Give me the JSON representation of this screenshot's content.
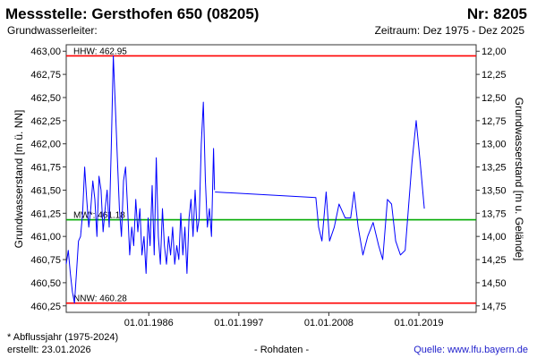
{
  "header": {
    "title": "Messstelle: Gersthofen 650 (08205)",
    "number": "Nr: 8205",
    "aquifer_label": "Grundwasserleiter:",
    "period": "Zeitraum: Dez 1975 - Dez 2025"
  },
  "footer": {
    "note": "* Abflussjahr (1975-2024)",
    "created": "erstellt:  23.01.2026",
    "mode": "- Rohdaten -",
    "source_label": "Quelle: ",
    "source_link": "www.lfu.bayern.de"
  },
  "chart_data": {
    "type": "line",
    "ylabel_left": "Grundwasserstand [m ü. NN]",
    "ylabel_right": "Grundwasserstand [m u. Gelände]",
    "yticks_left": [
      "463,00",
      "462,75",
      "462,50",
      "462,25",
      "462,00",
      "461,75",
      "461,50",
      "461,25",
      "461,00",
      "460,75",
      "460,50",
      "460,25"
    ],
    "yticks_right": [
      "12,00",
      "12,25",
      "12,50",
      "12,75",
      "13,00",
      "13,25",
      "13,50",
      "13,75",
      "14,00",
      "14,25",
      "14,50",
      "14,75"
    ],
    "xticks": [
      "01.01.1986",
      "01.01.1997",
      "01.01.2008",
      "01.01.2019"
    ],
    "xlim": [
      "1975-12-01",
      "2025-12-31"
    ],
    "ylim_left": [
      460.18,
      463.07
    ],
    "ylim_right": [
      14.82,
      11.93
    ],
    "reference_lines": [
      {
        "name": "HHW",
        "label": "HHW: 462.95",
        "value": 462.95,
        "color": "#ff0000"
      },
      {
        "name": "MW*",
        "label": "MW*: 461.18",
        "value": 461.18,
        "color": "#00aa00"
      },
      {
        "name": "NNW",
        "label": "NNW: 460.28",
        "value": 460.28,
        "color": "#ff0000"
      }
    ],
    "series_color": "#0000ff",
    "series": [
      {
        "segments": [
          [
            [
              "1975-12-01",
              460.7
            ],
            [
              "1976-03-01",
              460.85
            ],
            [
              "1976-06-01",
              460.6
            ],
            [
              "1976-09-01",
              460.4
            ],
            [
              "1976-12-01",
              460.28
            ],
            [
              "1977-03-01",
              460.6
            ],
            [
              "1977-06-01",
              460.95
            ],
            [
              "1977-09-01",
              461.0
            ],
            [
              "1977-12-01",
              461.25
            ],
            [
              "1978-03-01",
              461.75
            ],
            [
              "1978-06-01",
              461.4
            ],
            [
              "1978-09-01",
              461.1
            ],
            [
              "1978-12-01",
              461.3
            ],
            [
              "1979-03-01",
              461.6
            ],
            [
              "1979-06-01",
              461.4
            ],
            [
              "1979-09-01",
              461.0
            ],
            [
              "1979-12-01",
              461.65
            ],
            [
              "1980-03-01",
              461.5
            ],
            [
              "1980-06-01",
              461.05
            ],
            [
              "1980-09-01",
              461.3
            ],
            [
              "1980-12-01",
              461.5
            ],
            [
              "1981-03-01",
              461.1
            ],
            [
              "1981-06-01",
              461.95
            ],
            [
              "1981-09-01",
              462.95
            ],
            [
              "1981-12-01",
              462.4
            ],
            [
              "1982-03-01",
              461.85
            ],
            [
              "1982-06-01",
              461.3
            ],
            [
              "1982-09-01",
              461.0
            ],
            [
              "1982-12-01",
              461.6
            ],
            [
              "1983-03-01",
              461.75
            ],
            [
              "1983-06-01",
              461.3
            ],
            [
              "1983-09-01",
              460.8
            ],
            [
              "1983-12-01",
              461.1
            ],
            [
              "1984-03-01",
              460.9
            ],
            [
              "1984-06-01",
              461.4
            ],
            [
              "1984-09-01",
              461.05
            ],
            [
              "1984-12-01",
              461.3
            ],
            [
              "1985-03-01",
              460.8
            ],
            [
              "1985-06-01",
              461.0
            ],
            [
              "1985-09-01",
              460.6
            ],
            [
              "1985-12-01",
              461.2
            ],
            [
              "1986-03-01",
              460.9
            ],
            [
              "1986-06-01",
              461.55
            ],
            [
              "1986-09-01",
              460.8
            ],
            [
              "1986-12-01",
              461.85
            ],
            [
              "1987-03-01",
              461.0
            ],
            [
              "1987-06-01",
              460.7
            ],
            [
              "1987-09-01",
              461.3
            ],
            [
              "1987-12-01",
              460.9
            ],
            [
              "1988-03-01",
              460.7
            ],
            [
              "1988-06-01",
              461.0
            ],
            [
              "1988-09-01",
              460.8
            ],
            [
              "1988-12-01",
              461.1
            ],
            [
              "1989-03-01",
              460.7
            ],
            [
              "1989-06-01",
              460.9
            ],
            [
              "1989-09-01",
              460.75
            ],
            [
              "1989-12-01",
              461.25
            ],
            [
              "1990-03-01",
              460.8
            ],
            [
              "1990-06-01",
              461.1
            ],
            [
              "1990-09-01",
              460.6
            ],
            [
              "1990-12-01",
              461.2
            ],
            [
              "1991-03-01",
              461.4
            ],
            [
              "1991-06-01",
              461.0
            ],
            [
              "1991-09-01",
              461.5
            ],
            [
              "1991-12-01",
              461.05
            ],
            [
              "1992-03-01",
              461.2
            ],
            [
              "1992-06-01",
              462.0
            ],
            [
              "1992-09-01",
              462.45
            ],
            [
              "1992-12-01",
              461.6
            ],
            [
              "1993-03-01",
              461.1
            ],
            [
              "1993-06-01",
              461.3
            ],
            [
              "1993-09-01",
              461.0
            ],
            [
              "1993-12-01",
              461.95
            ],
            [
              "1994-01-15",
              461.5
            ]
          ],
          [
            [
              "1994-02-01",
              461.48
            ],
            [
              "2006-06-01",
              461.42
            ],
            [
              "2006-10-01",
              461.1
            ],
            [
              "2007-03-01",
              460.95
            ],
            [
              "2007-09-01",
              461.48
            ],
            [
              "2008-02-01",
              460.95
            ],
            [
              "2008-09-01",
              461.1
            ],
            [
              "2009-04-01",
              461.35
            ],
            [
              "2010-01-01",
              461.2
            ],
            [
              "2010-09-01",
              461.2
            ],
            [
              "2011-02-01",
              461.48
            ],
            [
              "2011-08-01",
              461.1
            ],
            [
              "2012-03-01",
              460.8
            ],
            [
              "2012-10-01",
              461.0
            ],
            [
              "2013-06-01",
              461.15
            ],
            [
              "2014-02-01",
              460.9
            ],
            [
              "2014-08-01",
              460.75
            ],
            [
              "2015-03-01",
              461.4
            ],
            [
              "2015-09-01",
              461.35
            ],
            [
              "2016-03-01",
              460.95
            ],
            [
              "2016-10-01",
              460.8
            ],
            [
              "2017-05-01",
              460.85
            ],
            [
              "2018-03-01",
              461.8
            ],
            [
              "2018-09-01",
              462.25
            ],
            [
              "2019-03-01",
              461.8
            ],
            [
              "2019-09-01",
              461.3
            ]
          ]
        ]
      }
    ]
  }
}
